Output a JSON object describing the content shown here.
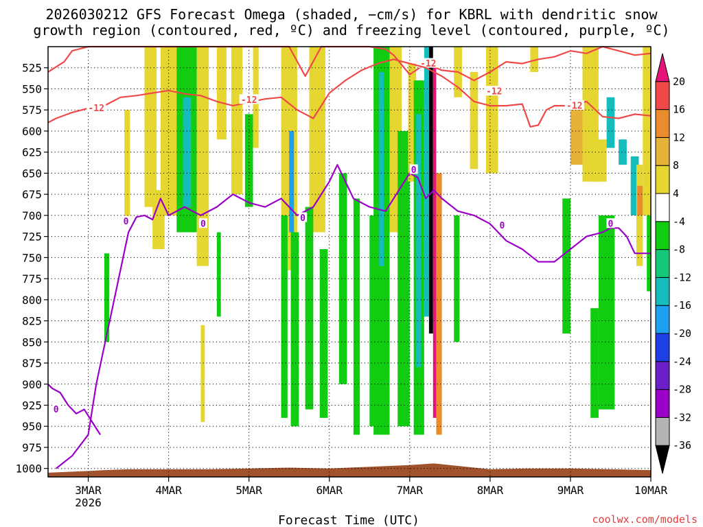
{
  "chart_data": {
    "type": "heatmap",
    "title_lines": [
      "2026030212 GFS Forecast Omega (shaded, −cm/s) for KBRL with dendritic snow",
      "growth region (contoured, red, ºC) and freezing level (contoured, purple, ºC)"
    ],
    "xlabel": "Forecast Time (UTC)",
    "credit": "coolwx.com/models",
    "x_range_days": [
      2.5,
      10.0
    ],
    "x_ticks": [
      {
        "day": 3,
        "label": "3MAR",
        "sub": "2026"
      },
      {
        "day": 4,
        "label": "4MAR",
        "sub": ""
      },
      {
        "day": 5,
        "label": "5MAR",
        "sub": ""
      },
      {
        "day": 6,
        "label": "6MAR",
        "sub": ""
      },
      {
        "day": 7,
        "label": "7MAR",
        "sub": ""
      },
      {
        "day": 8,
        "label": "8MAR",
        "sub": ""
      },
      {
        "day": 9,
        "label": "9MAR",
        "sub": ""
      },
      {
        "day": 10,
        "label": "10MAR",
        "sub": ""
      }
    ],
    "y_range_hpa": [
      1010,
      500
    ],
    "y_ticks": [
      525,
      550,
      575,
      600,
      625,
      650,
      675,
      700,
      725,
      750,
      775,
      800,
      825,
      850,
      875,
      900,
      925,
      950,
      975,
      1000
    ],
    "grid": true,
    "colorbar": {
      "bins": [
        {
          "color": "#000000",
          "label": "-36"
        },
        {
          "color": "#b4b4b4",
          "label": "-32"
        },
        {
          "color": "#9b00c8",
          "label": "-28"
        },
        {
          "color": "#6a1fc8",
          "label": "-24"
        },
        {
          "color": "#1f3fe6",
          "label": "-20"
        },
        {
          "color": "#1ea0f0",
          "label": "-16"
        },
        {
          "color": "#14bcbc",
          "label": "-12"
        },
        {
          "color": "#14c878",
          "label": "-8"
        },
        {
          "color": "#11cc11",
          "label": "-4"
        },
        {
          "color": "#ffffff",
          "label": "4"
        },
        {
          "color": "#e6d631",
          "label": "8"
        },
        {
          "color": "#e6b23a",
          "label": "12"
        },
        {
          "color": "#ea8c2e",
          "label": "16"
        },
        {
          "color": "#f04848",
          "label": "20"
        },
        {
          "color": "#e6147a",
          "label": ""
        }
      ]
    },
    "omega_shading": [
      {
        "x0": 3.45,
        "x1": 3.52,
        "p0": 575,
        "p1": 705,
        "color": "#e6d631"
      },
      {
        "x0": 3.2,
        "x1": 3.26,
        "p0": 745,
        "p1": 850,
        "color": "#11cc11"
      },
      {
        "x0": 3.7,
        "x1": 3.85,
        "p0": 500,
        "p1": 690,
        "color": "#e6d631"
      },
      {
        "x0": 3.8,
        "x1": 3.95,
        "p0": 670,
        "p1": 740,
        "color": "#e6d631"
      },
      {
        "x0": 3.9,
        "x1": 4.1,
        "p0": 500,
        "p1": 700,
        "color": "#e6d631"
      },
      {
        "x0": 4.1,
        "x1": 4.35,
        "p0": 500,
        "p1": 720,
        "color": "#11cc11"
      },
      {
        "x0": 4.18,
        "x1": 4.28,
        "p0": 560,
        "p1": 690,
        "color": "#14bcbc"
      },
      {
        "x0": 4.35,
        "x1": 4.5,
        "p0": 500,
        "p1": 760,
        "color": "#e6d631"
      },
      {
        "x0": 4.6,
        "x1": 4.72,
        "p0": 500,
        "p1": 610,
        "color": "#e6d631"
      },
      {
        "x0": 4.4,
        "x1": 4.45,
        "p0": 830,
        "p1": 945,
        "color": "#e6d631"
      },
      {
        "x0": 4.6,
        "x1": 4.65,
        "p0": 720,
        "p1": 820,
        "color": "#11cc11"
      },
      {
        "x0": 4.78,
        "x1": 4.92,
        "p0": 500,
        "p1": 675,
        "color": "#e6d631"
      },
      {
        "x0": 4.95,
        "x1": 5.05,
        "p0": 580,
        "p1": 690,
        "color": "#11cc11"
      },
      {
        "x0": 5.05,
        "x1": 5.12,
        "p0": 500,
        "p1": 620,
        "color": "#e6d631"
      },
      {
        "x0": 5.4,
        "x1": 5.6,
        "p0": 500,
        "p1": 765,
        "color": "#e6d631"
      },
      {
        "x0": 5.75,
        "x1": 5.95,
        "p0": 500,
        "p1": 720,
        "color": "#e6d631"
      },
      {
        "x0": 5.4,
        "x1": 5.48,
        "p0": 700,
        "p1": 940,
        "color": "#11cc11"
      },
      {
        "x0": 5.52,
        "x1": 5.62,
        "p0": 720,
        "p1": 950,
        "color": "#11cc11"
      },
      {
        "x0": 5.5,
        "x1": 5.56,
        "p0": 600,
        "p1": 720,
        "color": "#1ea0f0"
      },
      {
        "x0": 5.7,
        "x1": 5.8,
        "p0": 690,
        "p1": 930,
        "color": "#11cc11"
      },
      {
        "x0": 5.88,
        "x1": 5.98,
        "p0": 740,
        "p1": 940,
        "color": "#11cc11"
      },
      {
        "x0": 6.12,
        "x1": 6.22,
        "p0": 650,
        "p1": 900,
        "color": "#11cc11"
      },
      {
        "x0": 6.3,
        "x1": 6.38,
        "p0": 680,
        "p1": 960,
        "color": "#11cc11"
      },
      {
        "x0": 6.5,
        "x1": 6.56,
        "p0": 700,
        "p1": 950,
        "color": "#11cc11"
      },
      {
        "x0": 6.55,
        "x1": 6.75,
        "p0": 500,
        "p1": 960,
        "color": "#11cc11"
      },
      {
        "x0": 6.62,
        "x1": 6.68,
        "p0": 530,
        "p1": 760,
        "color": "#14bcbc"
      },
      {
        "x0": 6.75,
        "x1": 6.9,
        "p0": 500,
        "p1": 720,
        "color": "#e6d631"
      },
      {
        "x0": 6.85,
        "x1": 7.0,
        "p0": 600,
        "p1": 950,
        "color": "#11cc11"
      },
      {
        "x0": 6.98,
        "x1": 7.08,
        "p0": 520,
        "p1": 660,
        "color": "#e6d631"
      },
      {
        "x0": 7.05,
        "x1": 7.18,
        "p0": 540,
        "p1": 960,
        "color": "#11cc11"
      },
      {
        "x0": 7.08,
        "x1": 7.14,
        "p0": 580,
        "p1": 880,
        "color": "#14bcbc"
      },
      {
        "x0": 7.18,
        "x1": 7.24,
        "p0": 500,
        "p1": 820,
        "color": "#14bcbc"
      },
      {
        "x0": 7.24,
        "x1": 7.29,
        "p0": 500,
        "p1": 840,
        "color": "#000000"
      },
      {
        "x0": 7.29,
        "x1": 7.33,
        "p0": 520,
        "p1": 940,
        "color": "#e6147a"
      },
      {
        "x0": 7.33,
        "x1": 7.4,
        "p0": 650,
        "p1": 960,
        "color": "#ea8c2e"
      },
      {
        "x0": 7.55,
        "x1": 7.65,
        "p0": 500,
        "p1": 560,
        "color": "#e6d631"
      },
      {
        "x0": 7.55,
        "x1": 7.62,
        "p0": 700,
        "p1": 850,
        "color": "#11cc11"
      },
      {
        "x0": 7.75,
        "x1": 7.85,
        "p0": 530,
        "p1": 645,
        "color": "#e6d631"
      },
      {
        "x0": 7.95,
        "x1": 8.1,
        "p0": 500,
        "p1": 650,
        "color": "#e6d631"
      },
      {
        "x0": 8.5,
        "x1": 8.6,
        "p0": 500,
        "p1": 530,
        "color": "#e6d631"
      },
      {
        "x0": 8.9,
        "x1": 9.0,
        "p0": 680,
        "p1": 840,
        "color": "#11cc11"
      },
      {
        "x0": 9.0,
        "x1": 9.25,
        "p0": 570,
        "p1": 640,
        "color": "#e6b23a"
      },
      {
        "x0": 9.15,
        "x1": 9.35,
        "p0": 500,
        "p1": 660,
        "color": "#e6d631"
      },
      {
        "x0": 9.3,
        "x1": 9.45,
        "p0": 610,
        "p1": 660,
        "color": "#e6d631"
      },
      {
        "x0": 9.25,
        "x1": 9.35,
        "p0": 810,
        "p1": 940,
        "color": "#11cc11"
      },
      {
        "x0": 9.35,
        "x1": 9.55,
        "p0": 700,
        "p1": 930,
        "color": "#11cc11"
      },
      {
        "x0": 9.45,
        "x1": 9.55,
        "p0": 560,
        "p1": 620,
        "color": "#14bcbc"
      },
      {
        "x0": 9.6,
        "x1": 9.7,
        "p0": 610,
        "p1": 640,
        "color": "#14bcbc"
      },
      {
        "x0": 9.75,
        "x1": 9.85,
        "p0": 630,
        "p1": 700,
        "color": "#14bcbc"
      },
      {
        "x0": 9.82,
        "x1": 9.9,
        "p0": 640,
        "p1": 760,
        "color": "#e6d631"
      },
      {
        "x0": 9.83,
        "x1": 9.9,
        "p0": 665,
        "p1": 700,
        "color": "#ea8c2e"
      },
      {
        "x0": 9.9,
        "x1": 10.0,
        "p0": 500,
        "p1": 700,
        "color": "#e6d631"
      },
      {
        "x0": 9.95,
        "x1": 10.0,
        "p0": 700,
        "p1": 790,
        "color": "#11cc11"
      }
    ],
    "series": [
      {
        "name": "dendritic growth region (-12 ºC)",
        "role": "dgz-upper",
        "color": "#f04848",
        "label_positions": [
          {
            "day": 7.23,
            "p": 520,
            "text": "-12"
          },
          {
            "day": 8.05,
            "p": 553,
            "text": "-12"
          }
        ],
        "x": [
          2.5,
          2.7,
          2.8,
          3.0,
          3.2,
          3.4,
          3.5,
          3.7,
          3.9,
          4.2,
          4.4,
          4.7,
          4.9,
          5.1,
          5.3,
          5.5,
          5.7,
          5.9,
          6.1,
          6.3,
          6.5,
          6.7,
          6.8,
          7.0,
          7.2,
          7.4,
          7.6,
          7.8,
          8.0,
          8.2,
          8.4,
          8.6,
          8.8,
          9.0,
          9.2,
          9.4,
          9.6,
          9.8,
          10.0
        ],
        "p": [
          530,
          518,
          505,
          500,
          500,
          500,
          500,
          500,
          500,
          500,
          500,
          500,
          500,
          500,
          500,
          500,
          535,
          500,
          500,
          500,
          500,
          503,
          510,
          533,
          520,
          528,
          530,
          540,
          530,
          518,
          520,
          515,
          512,
          505,
          508,
          500,
          505,
          510,
          508
        ]
      },
      {
        "name": "dendritic growth region (-12 ºC) lower",
        "role": "dgz-lower",
        "color": "#f04848",
        "label_positions": [
          {
            "day": 3.1,
            "p": 573,
            "text": "-12"
          },
          {
            "day": 5.0,
            "p": 563,
            "text": "-12"
          },
          {
            "day": 9.05,
            "p": 570,
            "text": "-12"
          }
        ],
        "x": [
          2.5,
          2.6,
          2.8,
          3.0,
          3.2,
          3.4,
          3.6,
          3.8,
          4.0,
          4.2,
          4.4,
          4.6,
          4.8,
          5.0,
          5.2,
          5.4,
          5.6,
          5.8,
          6.0,
          6.2,
          6.4,
          6.6,
          6.8,
          7.0,
          7.2,
          7.4,
          7.6,
          7.8,
          8.0,
          8.2,
          8.4,
          8.5,
          8.6,
          8.7,
          8.8,
          9.0,
          9.2,
          9.4,
          9.6,
          9.8,
          10.0
        ],
        "p": [
          590,
          585,
          578,
          573,
          570,
          560,
          558,
          555,
          552,
          556,
          558,
          565,
          570,
          566,
          562,
          560,
          575,
          585,
          555,
          540,
          528,
          520,
          515,
          520,
          525,
          535,
          548,
          565,
          570,
          570,
          568,
          595,
          593,
          575,
          570,
          570,
          565,
          583,
          585,
          580,
          582
        ]
      },
      {
        "name": "freezing level (0 ºC)",
        "role": "freezing",
        "color": "#9b00c8",
        "label_positions": [
          {
            "day": 3.47,
            "p": 707,
            "text": "0"
          },
          {
            "day": 4.43,
            "p": 710,
            "text": "0"
          },
          {
            "day": 5.67,
            "p": 703,
            "text": "0"
          },
          {
            "day": 7.05,
            "p": 646,
            "text": "0"
          },
          {
            "day": 8.15,
            "p": 712,
            "text": "0"
          },
          {
            "day": 9.5,
            "p": 710,
            "text": "0"
          },
          {
            "day": 2.6,
            "p": 930,
            "text": "0"
          }
        ],
        "x": [
          2.6,
          2.8,
          3.0,
          3.1,
          3.3,
          3.5,
          3.6,
          3.7,
          3.8,
          3.9,
          4.0,
          4.2,
          4.4,
          4.6,
          4.8,
          5.0,
          5.2,
          5.4,
          5.6,
          5.8,
          6.0,
          6.1,
          6.3,
          6.5,
          6.7,
          6.9,
          7.0,
          7.1,
          7.2,
          7.3,
          7.4,
          7.6,
          7.8,
          8.0,
          8.2,
          8.4,
          8.6,
          8.8,
          9.0,
          9.2,
          9.4,
          9.5,
          9.6,
          9.7,
          9.8,
          9.9,
          10.0
        ],
        "p": [
          1000,
          985,
          960,
          900,
          810,
          720,
          702,
          700,
          705,
          680,
          700,
          690,
          700,
          690,
          675,
          685,
          690,
          680,
          700,
          690,
          660,
          640,
          680,
          690,
          695,
          665,
          650,
          655,
          680,
          670,
          680,
          695,
          700,
          710,
          730,
          740,
          755,
          755,
          740,
          725,
          720,
          715,
          715,
          725,
          745,
          745,
          745
        ]
      },
      {
        "name": "freezing level low branch",
        "role": "freezing-low",
        "color": "#9b00c8",
        "label_positions": [],
        "x": [
          2.5,
          2.55,
          2.65,
          2.75,
          2.85,
          2.95,
          3.05,
          3.15
        ],
        "p": [
          900,
          905,
          910,
          925,
          935,
          930,
          945,
          960
        ]
      }
    ],
    "terrain": {
      "color": "#a0522d",
      "x": [
        2.5,
        3.0,
        3.2,
        3.5,
        4.0,
        4.5,
        5.0,
        5.5,
        6.0,
        6.5,
        7.0,
        7.3,
        7.5,
        8.0,
        8.5,
        9.0,
        9.5,
        10.0
      ],
      "p": [
        1005,
        1003,
        1002,
        1001,
        1001,
        1001,
        1000,
        999,
        1000,
        998,
        996,
        994,
        996,
        1001,
        1000,
        1000,
        1001,
        1002
      ]
    }
  }
}
